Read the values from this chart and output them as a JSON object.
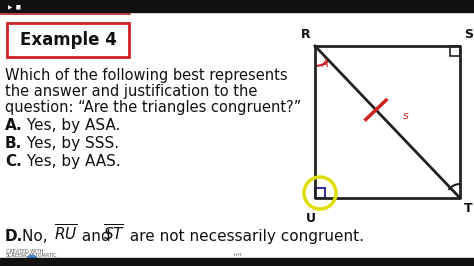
{
  "bg_color": "#ffffff",
  "top_bar_color": "#111111",
  "bottom_bar_color": "#111111",
  "title_box_text": "Example 4",
  "title_box_bg": "#ffffff",
  "title_box_border": "#cc2222",
  "question_line1": "Which of the following best represents",
  "question_line2": "the answer and justification to the",
  "question_line3": "question: “Are the triangles congruent?”",
  "ans_A_bold": "A.",
  "ans_A_rest": " Yes, by ASA.",
  "ans_B_bold": "B.",
  "ans_B_rest": " Yes, by SSS.",
  "ans_C_bold": "C.",
  "ans_C_rest": " Yes, by AAS.",
  "ans_D_bold": "D.",
  "text_color": "#111111",
  "rect_color": "#222222",
  "diag_color": "#222222",
  "tick_color": "#cc2222",
  "circle_color": "#dddd00",
  "corner_sq_color": "#3333aa",
  "label_R": "R",
  "label_S": "S",
  "label_U": "U",
  "label_T": "T",
  "watermark1": "CREATED WITH",
  "watermark2": "SCREENCASTOMATIC"
}
